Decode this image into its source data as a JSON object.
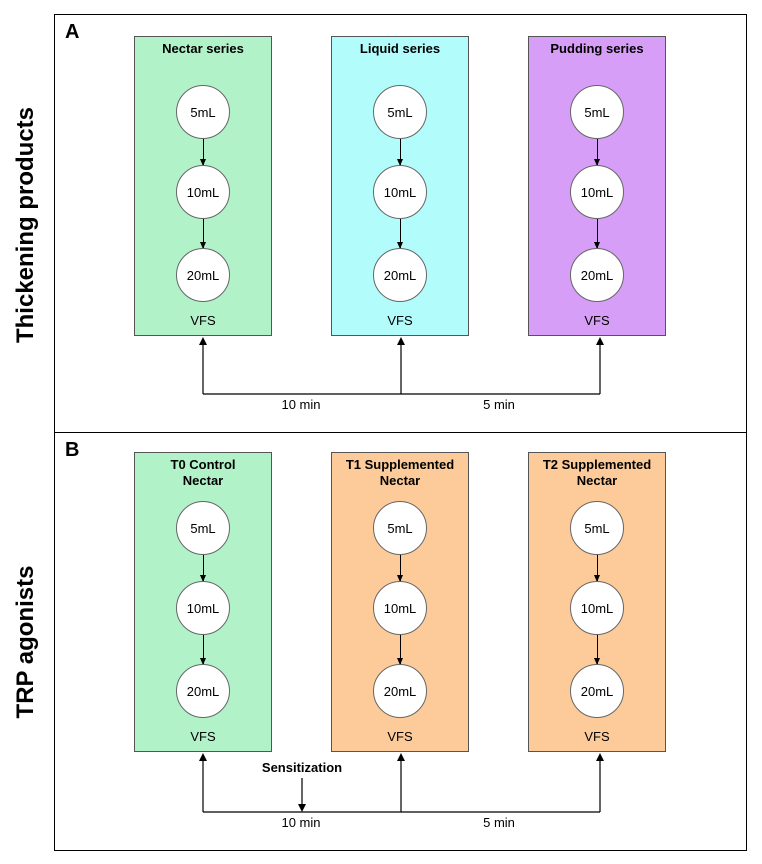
{
  "panel_a": {
    "letter": "A",
    "side_label": "Thickening products",
    "boxes": [
      {
        "title_lines": [
          "Nectar series"
        ],
        "color": "#b2f2c8"
      },
      {
        "title_lines": [
          "Liquid series"
        ],
        "color": "#b2fcfb"
      },
      {
        "title_lines": [
          "Pudding series"
        ],
        "color": "#d79ef7"
      }
    ],
    "interval_left": "10 min",
    "interval_right": "5 min"
  },
  "panel_b": {
    "letter": "B",
    "side_label": "TRP agonists",
    "boxes": [
      {
        "title_lines": [
          "T0 Control",
          "Nectar"
        ],
        "color": "#b2f2c8"
      },
      {
        "title_lines": [
          "T1 Supplemented",
          "Nectar"
        ],
        "color": "#fccb99"
      },
      {
        "title_lines": [
          "T2 Supplemented",
          "Nectar"
        ],
        "color": "#fccb99"
      }
    ],
    "sensitization_label": "Sensitization",
    "interval_left": "10 min",
    "interval_right": "5 min"
  },
  "volumes": [
    "5mL",
    "10mL",
    "20mL"
  ],
  "endpoint": "VFS"
}
